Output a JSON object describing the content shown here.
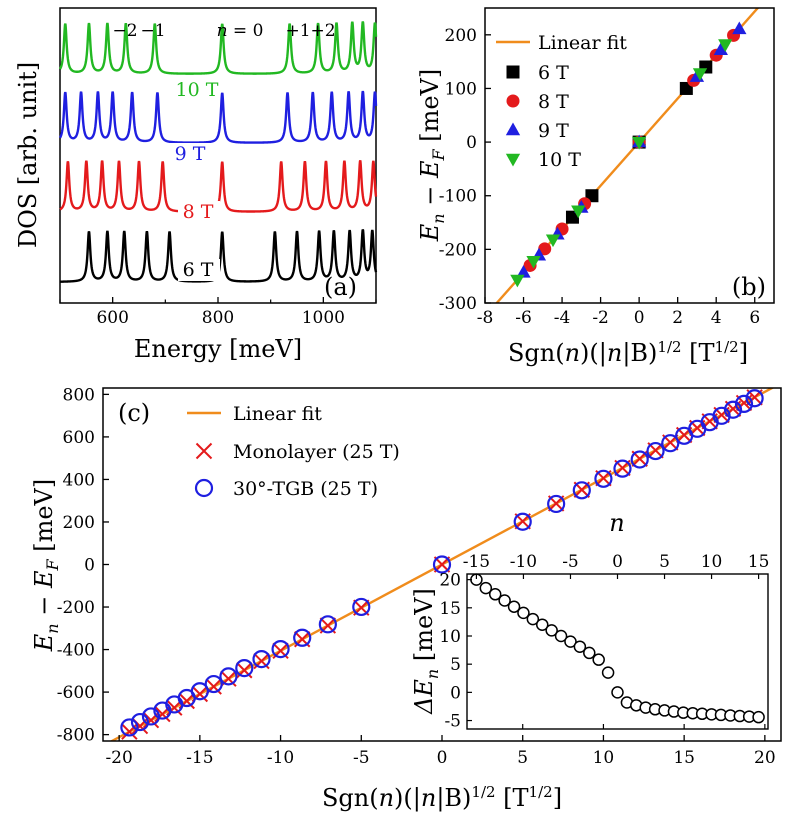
{
  "chart_data": [
    {
      "panel": "(a)",
      "type": "line",
      "xlabel": "Energy [meV]",
      "ylabel": "DOS [arb. unit]",
      "xlim": [
        500,
        1100
      ],
      "xticks": [
        600,
        800,
        1000
      ],
      "level_labels": [
        "−2",
        "−1",
        "n = 0",
        "+1",
        "+2"
      ],
      "series": [
        {
          "name": "6 T",
          "color": "#000000",
          "offset": 0.0,
          "levels": [
            555,
            590,
            622,
            665,
            708,
            808,
            908,
            950,
            992,
            1020,
            1050,
            1075,
            1093
          ]
        },
        {
          "name": "8 T",
          "color": "#e41a1c",
          "offset": 1.0,
          "levels": [
            515,
            550,
            580,
            612,
            650,
            695,
            808,
            920,
            965,
            1005,
            1040,
            1070,
            1095
          ]
        },
        {
          "name": "9 T",
          "color": "#1f1fe0",
          "offset": 2.0,
          "levels": [
            510,
            540,
            572,
            600,
            637,
            685,
            808,
            932,
            980,
            1016,
            1048,
            1075,
            1098
          ]
        },
        {
          "name": "10 T",
          "color": "#22b822",
          "offset": 3.0,
          "levels": [
            510,
            555,
            590,
            625,
            680,
            808,
            936,
            990,
            1025,
            1055,
            1075,
            1098
          ]
        }
      ]
    },
    {
      "panel": "(b)",
      "type": "scatter",
      "xlabel": "Sgn(n)(|n|B)^1/2 [T^1/2]",
      "ylabel": "E_n − E_F [meV]",
      "xlim": [
        -8,
        7
      ],
      "ylim": [
        -300,
        250
      ],
      "xticks": [
        -8,
        -6,
        -4,
        -2,
        0,
        2,
        4,
        6
      ],
      "yticks": [
        -300,
        -200,
        -100,
        0,
        100,
        200
      ],
      "fit": {
        "name": "Linear fit",
        "slope": 40.6,
        "color": "#f08c1c"
      },
      "series": [
        {
          "name": "6 T",
          "marker": "square",
          "color": "#000000",
          "x": [
            -3.46,
            -2.45,
            0,
            2.45,
            3.46
          ],
          "y": [
            -140,
            -100,
            0,
            100,
            140
          ]
        },
        {
          "name": "8 T",
          "marker": "circle",
          "color": "#e41a1c",
          "x": [
            -5.66,
            -4.9,
            -4.0,
            -2.83,
            0,
            2.83,
            4.0,
            4.9
          ],
          "y": [
            -230,
            -199,
            -162,
            -115,
            0,
            115,
            162,
            199
          ]
        },
        {
          "name": "9 T",
          "marker": "triangle-up",
          "color": "#1f1fe0",
          "x": [
            -6.0,
            -5.2,
            -4.24,
            -3.0,
            0,
            3.0,
            4.24,
            5.2
          ],
          "y": [
            -243,
            -211,
            -172,
            -122,
            0,
            122,
            172,
            211
          ]
        },
        {
          "name": "10 T",
          "marker": "triangle-down",
          "color": "#22b822",
          "x": [
            -6.32,
            -5.48,
            -4.47,
            -3.16,
            0,
            3.16,
            4.47
          ],
          "y": [
            -257,
            -222,
            -182,
            -128,
            0,
            128,
            182
          ]
        }
      ]
    },
    {
      "panel": "(c)",
      "type": "scatter",
      "xlabel": "Sgn(n)(|n|B)^1/2 [T^1/2]",
      "ylabel": "E_n − E_F [meV]",
      "xlim": [
        -21,
        21
      ],
      "ylim": [
        -830,
        830
      ],
      "xticks": [
        -20,
        -15,
        -10,
        -5,
        0,
        5,
        10,
        15,
        20
      ],
      "yticks": [
        -800,
        -600,
        -400,
        -200,
        0,
        200,
        400,
        600,
        800
      ],
      "fit": {
        "name": "Linear fit",
        "slope": 40.6,
        "color": "#f08c1c"
      },
      "B_tesla": 25,
      "n_max": 15,
      "series": [
        {
          "name": "Monolayer (25 T)",
          "marker": "x",
          "color": "#e41a1c"
        },
        {
          "name": "30°-TGB (25 T)",
          "marker": "open-circle",
          "color": "#1f1fe0"
        }
      ],
      "inset": {
        "type": "scatter",
        "xlabel": "n",
        "ylabel": "ΔE_n [meV]",
        "xlim": [
          -16,
          16
        ],
        "ylim": [
          -6.5,
          21
        ],
        "xticks": [
          -15,
          -10,
          -5,
          0,
          5,
          10,
          15
        ],
        "yticks": [
          -5,
          0,
          5,
          10,
          15,
          20
        ],
        "bottom_xticks": [
          5,
          10,
          15,
          20
        ],
        "n": [
          -15,
          -14,
          -13,
          -12,
          -11,
          -10,
          -9,
          -8,
          -7,
          -6,
          -5,
          -4,
          -3,
          -2,
          -1,
          0,
          1,
          2,
          3,
          4,
          5,
          6,
          7,
          8,
          9,
          10,
          11,
          12,
          13,
          14,
          15
        ],
        "values": [
          20.0,
          18.5,
          17.4,
          16.3,
          15.2,
          14.1,
          13.0,
          12.0,
          11.0,
          10.0,
          9.0,
          8.1,
          7.0,
          5.8,
          3.5,
          0.0,
          -1.8,
          -2.3,
          -2.7,
          -3.0,
          -3.2,
          -3.4,
          -3.6,
          -3.7,
          -3.8,
          -3.9,
          -4.0,
          -4.1,
          -4.2,
          -4.3,
          -4.4
        ]
      }
    }
  ]
}
